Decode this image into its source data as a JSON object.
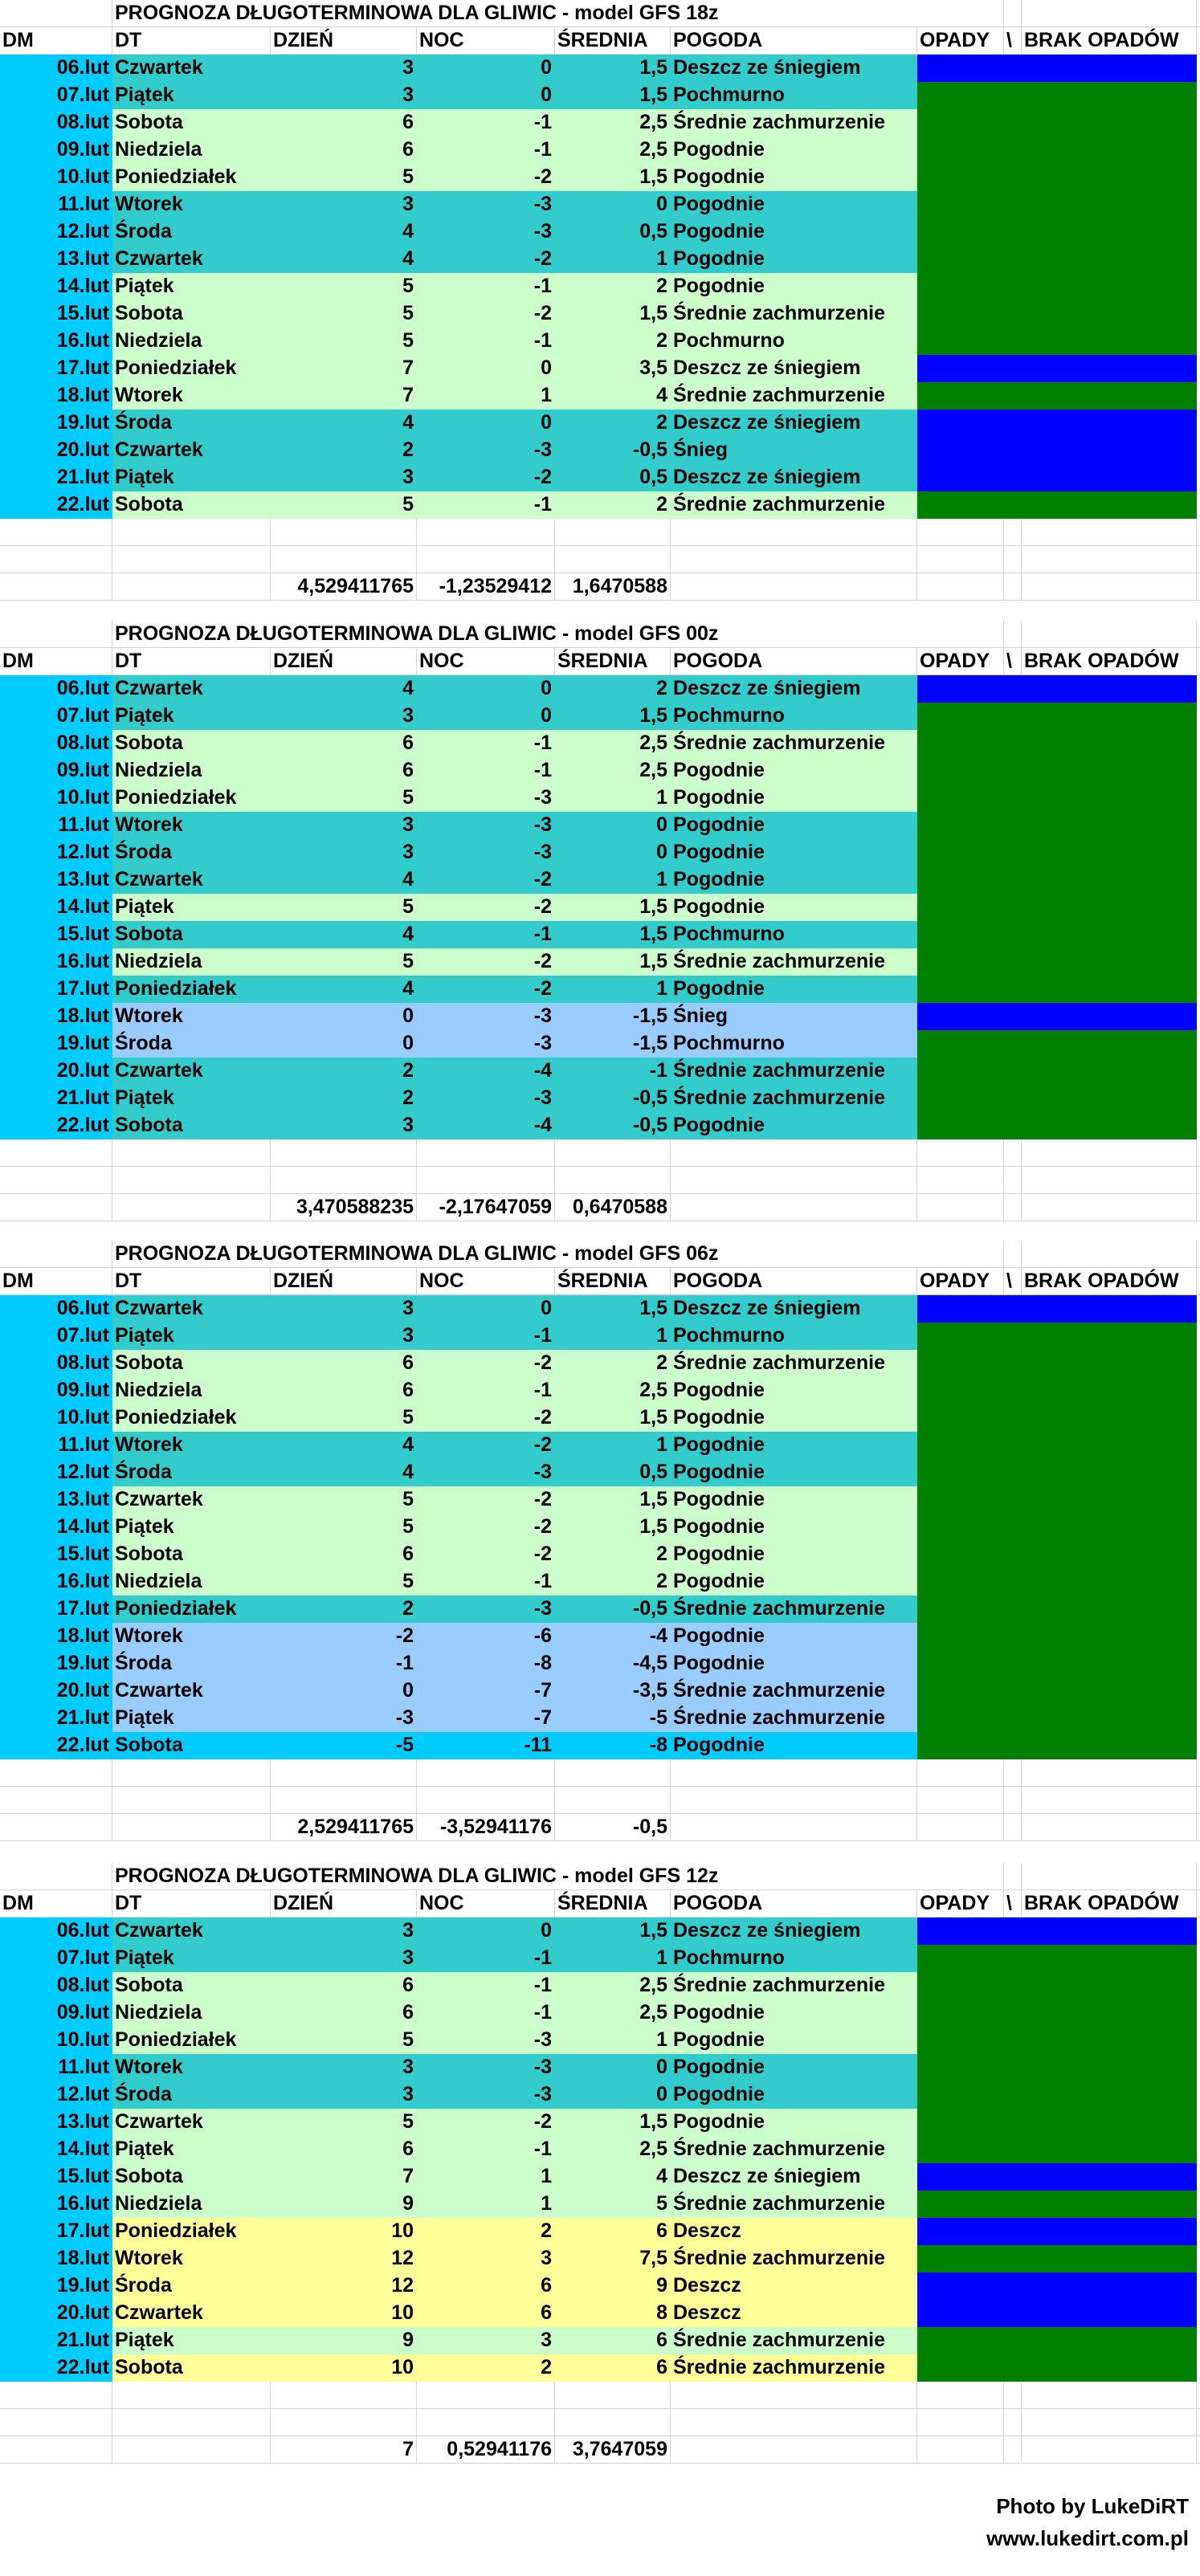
{
  "headers": {
    "dm": "DM",
    "dt": "DT",
    "day": "DZIEŃ",
    "night": "NOC",
    "avg": "ŚREDNIA",
    "weather": "POGODA",
    "precip": "OPADY",
    "sep": "\\",
    "noprecip": "BRAK OPADÓW"
  },
  "colors": {
    "dm": "#00ccff",
    "teal": "#33cccc",
    "green": "#ccffcc",
    "lightblue": "#99ccff",
    "yellow": "#ffff99",
    "cyan": "#00ccff",
    "precip": "#0000ff",
    "noprecip": "#008000"
  },
  "blocks": [
    {
      "title": "PROGNOZA DŁUGOTERMINOWA DLA GLIWIC - model GFS 18z",
      "rows": [
        {
          "dm": "06.lut",
          "dt": "Czwartek",
          "day": "3",
          "night": "0",
          "avg": "1,5",
          "weather": "Deszcz ze śniegiem",
          "bg": "teal",
          "rain": "precip"
        },
        {
          "dm": "07.lut",
          "dt": "Piątek",
          "day": "3",
          "night": "0",
          "avg": "1,5",
          "weather": "Pochmurno",
          "bg": "teal",
          "rain": "noprecip"
        },
        {
          "dm": "08.lut",
          "dt": "Sobota",
          "day": "6",
          "night": "-1",
          "avg": "2,5",
          "weather": "Średnie zachmurzenie",
          "bg": "green",
          "rain": "noprecip"
        },
        {
          "dm": "09.lut",
          "dt": "Niedziela",
          "day": "6",
          "night": "-1",
          "avg": "2,5",
          "weather": "Pogodnie",
          "bg": "green",
          "rain": "noprecip"
        },
        {
          "dm": "10.lut",
          "dt": "Poniedziałek",
          "day": "5",
          "night": "-2",
          "avg": "1,5",
          "weather": "Pogodnie",
          "bg": "green",
          "rain": "noprecip"
        },
        {
          "dm": "11.lut",
          "dt": "Wtorek",
          "day": "3",
          "night": "-3",
          "avg": "0",
          "weather": "Pogodnie",
          "bg": "teal",
          "rain": "noprecip"
        },
        {
          "dm": "12.lut",
          "dt": "Środa",
          "day": "4",
          "night": "-3",
          "avg": "0,5",
          "weather": "Pogodnie",
          "bg": "teal",
          "rain": "noprecip"
        },
        {
          "dm": "13.lut",
          "dt": "Czwartek",
          "day": "4",
          "night": "-2",
          "avg": "1",
          "weather": "Pogodnie",
          "bg": "teal",
          "rain": "noprecip"
        },
        {
          "dm": "14.lut",
          "dt": "Piątek",
          "day": "5",
          "night": "-1",
          "avg": "2",
          "weather": "Pogodnie",
          "bg": "green",
          "rain": "noprecip"
        },
        {
          "dm": "15.lut",
          "dt": "Sobota",
          "day": "5",
          "night": "-2",
          "avg": "1,5",
          "weather": "Średnie zachmurzenie",
          "bg": "green",
          "rain": "noprecip"
        },
        {
          "dm": "16.lut",
          "dt": "Niedziela",
          "day": "5",
          "night": "-1",
          "avg": "2",
          "weather": "Pochmurno",
          "bg": "green",
          "rain": "noprecip"
        },
        {
          "dm": "17.lut",
          "dt": "Poniedziałek",
          "day": "7",
          "night": "0",
          "avg": "3,5",
          "weather": "Deszcz ze śniegiem",
          "bg": "green",
          "rain": "precip"
        },
        {
          "dm": "18.lut",
          "dt": "Wtorek",
          "day": "7",
          "night": "1",
          "avg": "4",
          "weather": "Średnie zachmurzenie",
          "bg": "green",
          "rain": "noprecip"
        },
        {
          "dm": "19.lut",
          "dt": "Środa",
          "day": "4",
          "night": "0",
          "avg": "2",
          "weather": "Deszcz ze śniegiem",
          "bg": "teal",
          "rain": "precip"
        },
        {
          "dm": "20.lut",
          "dt": "Czwartek",
          "day": "2",
          "night": "-3",
          "avg": "-0,5",
          "weather": "Śnieg",
          "bg": "teal",
          "rain": "precip"
        },
        {
          "dm": "21.lut",
          "dt": "Piątek",
          "day": "3",
          "night": "-2",
          "avg": "0,5",
          "weather": "Deszcz ze śniegiem",
          "bg": "teal",
          "rain": "precip"
        },
        {
          "dm": "22.lut",
          "dt": "Sobota",
          "day": "5",
          "night": "-1",
          "avg": "2",
          "weather": "Średnie zachmurzenie",
          "bg": "green",
          "rain": "noprecip"
        }
      ],
      "sums": {
        "day": "4,529411765",
        "night": "-1,23529412",
        "avg": "1,6470588"
      }
    },
    {
      "title": "PROGNOZA DŁUGOTERMINOWA DLA GLIWIC - model GFS 00z",
      "rows": [
        {
          "dm": "06.lut",
          "dt": "Czwartek",
          "day": "4",
          "night": "0",
          "avg": "2",
          "weather": "Deszcz ze śniegiem",
          "bg": "teal",
          "rain": "precip"
        },
        {
          "dm": "07.lut",
          "dt": "Piątek",
          "day": "3",
          "night": "0",
          "avg": "1,5",
          "weather": "Pochmurno",
          "bg": "teal",
          "rain": "noprecip"
        },
        {
          "dm": "08.lut",
          "dt": "Sobota",
          "day": "6",
          "night": "-1",
          "avg": "2,5",
          "weather": "Średnie zachmurzenie",
          "bg": "green",
          "rain": "noprecip"
        },
        {
          "dm": "09.lut",
          "dt": "Niedziela",
          "day": "6",
          "night": "-1",
          "avg": "2,5",
          "weather": "Pogodnie",
          "bg": "green",
          "rain": "noprecip"
        },
        {
          "dm": "10.lut",
          "dt": "Poniedziałek",
          "day": "5",
          "night": "-3",
          "avg": "1",
          "weather": "Pogodnie",
          "bg": "green",
          "rain": "noprecip"
        },
        {
          "dm": "11.lut",
          "dt": "Wtorek",
          "day": "3",
          "night": "-3",
          "avg": "0",
          "weather": "Pogodnie",
          "bg": "teal",
          "rain": "noprecip"
        },
        {
          "dm": "12.lut",
          "dt": "Środa",
          "day": "3",
          "night": "-3",
          "avg": "0",
          "weather": "Pogodnie",
          "bg": "teal",
          "rain": "noprecip"
        },
        {
          "dm": "13.lut",
          "dt": "Czwartek",
          "day": "4",
          "night": "-2",
          "avg": "1",
          "weather": "Pogodnie",
          "bg": "teal",
          "rain": "noprecip"
        },
        {
          "dm": "14.lut",
          "dt": "Piątek",
          "day": "5",
          "night": "-2",
          "avg": "1,5",
          "weather": "Pogodnie",
          "bg": "green",
          "rain": "noprecip"
        },
        {
          "dm": "15.lut",
          "dt": "Sobota",
          "day": "4",
          "night": "-1",
          "avg": "1,5",
          "weather": "Pochmurno",
          "bg": "teal",
          "rain": "noprecip"
        },
        {
          "dm": "16.lut",
          "dt": "Niedziela",
          "day": "5",
          "night": "-2",
          "avg": "1,5",
          "weather": "Średnie zachmurzenie",
          "bg": "green",
          "rain": "noprecip"
        },
        {
          "dm": "17.lut",
          "dt": "Poniedziałek",
          "day": "4",
          "night": "-2",
          "avg": "1",
          "weather": "Pogodnie",
          "bg": "teal",
          "rain": "noprecip"
        },
        {
          "dm": "18.lut",
          "dt": "Wtorek",
          "day": "0",
          "night": "-3",
          "avg": "-1,5",
          "weather": "Śnieg",
          "bg": "lightblue",
          "rain": "precip"
        },
        {
          "dm": "19.lut",
          "dt": "Środa",
          "day": "0",
          "night": "-3",
          "avg": "-1,5",
          "weather": "Pochmurno",
          "bg": "lightblue",
          "rain": "noprecip"
        },
        {
          "dm": "20.lut",
          "dt": "Czwartek",
          "day": "2",
          "night": "-4",
          "avg": "-1",
          "weather": "Średnie zachmurzenie",
          "bg": "teal",
          "rain": "noprecip"
        },
        {
          "dm": "21.lut",
          "dt": "Piątek",
          "day": "2",
          "night": "-3",
          "avg": "-0,5",
          "weather": "Średnie zachmurzenie",
          "bg": "teal",
          "rain": "noprecip"
        },
        {
          "dm": "22.lut",
          "dt": "Sobota",
          "day": "3",
          "night": "-4",
          "avg": "-0,5",
          "weather": "Pogodnie",
          "bg": "teal",
          "rain": "noprecip"
        }
      ],
      "sums": {
        "day": "3,470588235",
        "night": "-2,17647059",
        "avg": "0,6470588"
      }
    },
    {
      "title": "PROGNOZA DŁUGOTERMINOWA DLA GLIWIC - model GFS 06z",
      "rows": [
        {
          "dm": "06.lut",
          "dt": "Czwartek",
          "day": "3",
          "night": "0",
          "avg": "1,5",
          "weather": "Deszcz ze śniegiem",
          "bg": "teal",
          "rain": "precip"
        },
        {
          "dm": "07.lut",
          "dt": "Piątek",
          "day": "3",
          "night": "-1",
          "avg": "1",
          "weather": "Pochmurno",
          "bg": "teal",
          "rain": "noprecip"
        },
        {
          "dm": "08.lut",
          "dt": "Sobota",
          "day": "6",
          "night": "-2",
          "avg": "2",
          "weather": "Średnie zachmurzenie",
          "bg": "green",
          "rain": "noprecip"
        },
        {
          "dm": "09.lut",
          "dt": "Niedziela",
          "day": "6",
          "night": "-1",
          "avg": "2,5",
          "weather": "Pogodnie",
          "bg": "green",
          "rain": "noprecip"
        },
        {
          "dm": "10.lut",
          "dt": "Poniedziałek",
          "day": "5",
          "night": "-2",
          "avg": "1,5",
          "weather": "Pogodnie",
          "bg": "green",
          "rain": "noprecip"
        },
        {
          "dm": "11.lut",
          "dt": "Wtorek",
          "day": "4",
          "night": "-2",
          "avg": "1",
          "weather": "Pogodnie",
          "bg": "teal",
          "rain": "noprecip"
        },
        {
          "dm": "12.lut",
          "dt": "Środa",
          "day": "4",
          "night": "-3",
          "avg": "0,5",
          "weather": "Pogodnie",
          "bg": "teal",
          "rain": "noprecip"
        },
        {
          "dm": "13.lut",
          "dt": "Czwartek",
          "day": "5",
          "night": "-2",
          "avg": "1,5",
          "weather": "Pogodnie",
          "bg": "green",
          "rain": "noprecip"
        },
        {
          "dm": "14.lut",
          "dt": "Piątek",
          "day": "5",
          "night": "-2",
          "avg": "1,5",
          "weather": "Pogodnie",
          "bg": "green",
          "rain": "noprecip"
        },
        {
          "dm": "15.lut",
          "dt": "Sobota",
          "day": "6",
          "night": "-2",
          "avg": "2",
          "weather": "Pogodnie",
          "bg": "green",
          "rain": "noprecip"
        },
        {
          "dm": "16.lut",
          "dt": "Niedziela",
          "day": "5",
          "night": "-1",
          "avg": "2",
          "weather": "Pogodnie",
          "bg": "green",
          "rain": "noprecip"
        },
        {
          "dm": "17.lut",
          "dt": "Poniedziałek",
          "day": "2",
          "night": "-3",
          "avg": "-0,5",
          "weather": "Średnie zachmurzenie",
          "bg": "teal",
          "rain": "noprecip"
        },
        {
          "dm": "18.lut",
          "dt": "Wtorek",
          "day": "-2",
          "night": "-6",
          "avg": "-4",
          "weather": "Pogodnie",
          "bg": "lightblue",
          "rain": "noprecip"
        },
        {
          "dm": "19.lut",
          "dt": "Środa",
          "day": "-1",
          "night": "-8",
          "avg": "-4,5",
          "weather": "Pogodnie",
          "bg": "lightblue",
          "rain": "noprecip"
        },
        {
          "dm": "20.lut",
          "dt": "Czwartek",
          "day": "0",
          "night": "-7",
          "avg": "-3,5",
          "weather": "Średnie zachmurzenie",
          "bg": "lightblue",
          "rain": "noprecip"
        },
        {
          "dm": "21.lut",
          "dt": "Piątek",
          "day": "-3",
          "night": "-7",
          "avg": "-5",
          "weather": "Średnie zachmurzenie",
          "bg": "lightblue",
          "rain": "noprecip"
        },
        {
          "dm": "22.lut",
          "dt": "Sobota",
          "day": "-5",
          "night": "-11",
          "avg": "-8",
          "weather": "Pogodnie",
          "bg": "cyan",
          "rain": "noprecip"
        }
      ],
      "sums": {
        "day": "2,529411765",
        "night": "-3,52941176",
        "avg": "-0,5"
      }
    },
    {
      "title": "PROGNOZA DŁUGOTERMINOWA DLA GLIWIC - model GFS 12z",
      "rows": [
        {
          "dm": "06.lut",
          "dt": "Czwartek",
          "day": "3",
          "night": "0",
          "avg": "1,5",
          "weather": "Deszcz ze śniegiem",
          "bg": "teal",
          "rain": "precip"
        },
        {
          "dm": "07.lut",
          "dt": "Piątek",
          "day": "3",
          "night": "-1",
          "avg": "1",
          "weather": "Pochmurno",
          "bg": "teal",
          "rain": "noprecip"
        },
        {
          "dm": "08.lut",
          "dt": "Sobota",
          "day": "6",
          "night": "-1",
          "avg": "2,5",
          "weather": "Średnie zachmurzenie",
          "bg": "green",
          "rain": "noprecip"
        },
        {
          "dm": "09.lut",
          "dt": "Niedziela",
          "day": "6",
          "night": "-1",
          "avg": "2,5",
          "weather": "Pogodnie",
          "bg": "green",
          "rain": "noprecip"
        },
        {
          "dm": "10.lut",
          "dt": "Poniedziałek",
          "day": "5",
          "night": "-3",
          "avg": "1",
          "weather": "Pogodnie",
          "bg": "green",
          "rain": "noprecip"
        },
        {
          "dm": "11.lut",
          "dt": "Wtorek",
          "day": "3",
          "night": "-3",
          "avg": "0",
          "weather": "Pogodnie",
          "bg": "teal",
          "rain": "noprecip"
        },
        {
          "dm": "12.lut",
          "dt": "Środa",
          "day": "3",
          "night": "-3",
          "avg": "0",
          "weather": "Pogodnie",
          "bg": "teal",
          "rain": "noprecip"
        },
        {
          "dm": "13.lut",
          "dt": "Czwartek",
          "day": "5",
          "night": "-2",
          "avg": "1,5",
          "weather": "Pogodnie",
          "bg": "green",
          "rain": "noprecip"
        },
        {
          "dm": "14.lut",
          "dt": "Piątek",
          "day": "6",
          "night": "-1",
          "avg": "2,5",
          "weather": "Średnie zachmurzenie",
          "bg": "green",
          "rain": "noprecip"
        },
        {
          "dm": "15.lut",
          "dt": "Sobota",
          "day": "7",
          "night": "1",
          "avg": "4",
          "weather": "Deszcz ze śniegiem",
          "bg": "green",
          "rain": "precip"
        },
        {
          "dm": "16.lut",
          "dt": "Niedziela",
          "day": "9",
          "night": "1",
          "avg": "5",
          "weather": "Średnie zachmurzenie",
          "bg": "green",
          "rain": "noprecip"
        },
        {
          "dm": "17.lut",
          "dt": "Poniedziałek",
          "day": "10",
          "night": "2",
          "avg": "6",
          "weather": "Deszcz",
          "bg": "yellow",
          "rain": "precip"
        },
        {
          "dm": "18.lut",
          "dt": "Wtorek",
          "day": "12",
          "night": "3",
          "avg": "7,5",
          "weather": "Średnie zachmurzenie",
          "bg": "yellow",
          "rain": "noprecip"
        },
        {
          "dm": "19.lut",
          "dt": "Środa",
          "day": "12",
          "night": "6",
          "avg": "9",
          "weather": "Deszcz",
          "bg": "yellow",
          "rain": "precip"
        },
        {
          "dm": "20.lut",
          "dt": "Czwartek",
          "day": "10",
          "night": "6",
          "avg": "8",
          "weather": "Deszcz",
          "bg": "yellow",
          "rain": "precip"
        },
        {
          "dm": "21.lut",
          "dt": "Piątek",
          "day": "9",
          "night": "3",
          "avg": "6",
          "weather": "Średnie zachmurzenie",
          "bg": "green",
          "rain": "noprecip"
        },
        {
          "dm": "22.lut",
          "dt": "Sobota",
          "day": "10",
          "night": "2",
          "avg": "6",
          "weather": "Średnie zachmurzenie",
          "bg": "yellow",
          "rain": "noprecip"
        }
      ],
      "sums": {
        "day": "7",
        "night": "0,52941176",
        "avg": "3,7647059"
      }
    }
  ],
  "footer": {
    "credit": "Photo by LukeDiRT",
    "website": "www.lukedirt.com.pl"
  }
}
